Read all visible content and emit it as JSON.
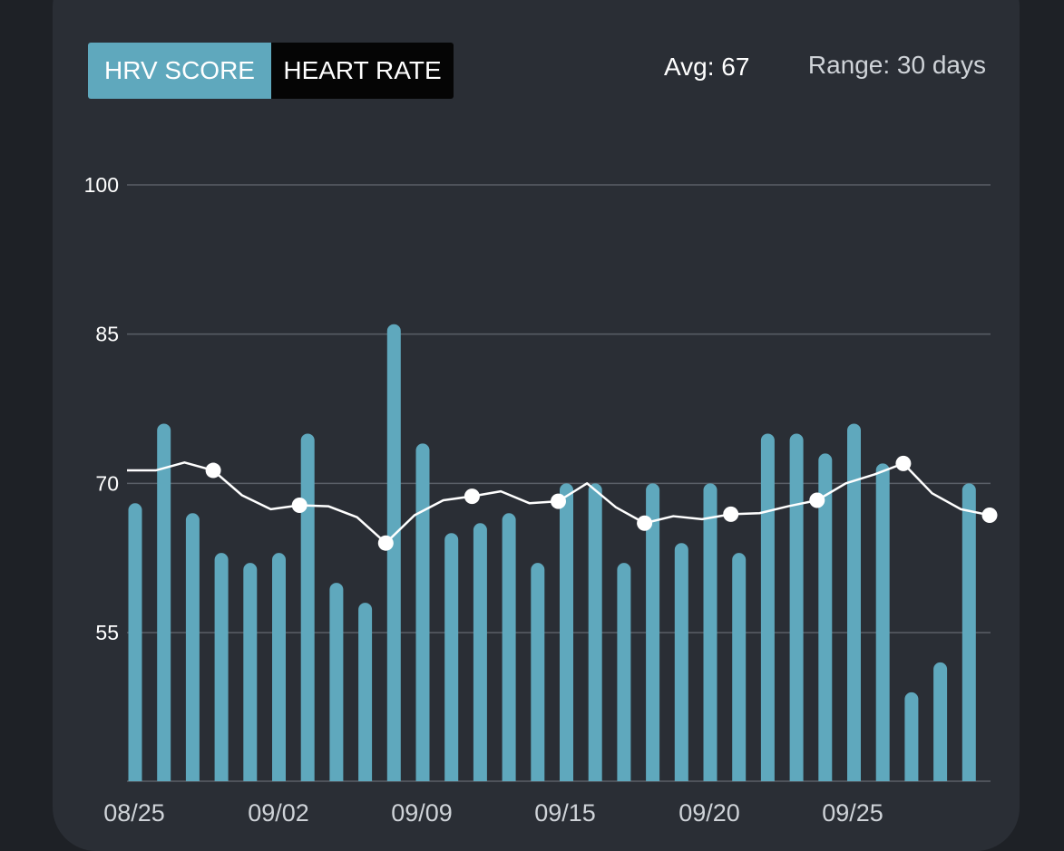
{
  "toggle": {
    "active_label": "HRV SCORE",
    "inactive_label": "HEART RATE"
  },
  "summary": {
    "avg": "Avg: 67",
    "range": "Range: 30 days"
  },
  "colors": {
    "bar": "#5fa8bd",
    "line": "#ffffff",
    "grid": "#5a5f67",
    "card": "#2a2e35",
    "background": "#1e2126"
  },
  "chart_data": {
    "type": "bar",
    "title": "",
    "xlabel": "",
    "ylabel": "",
    "ylim": [
      40,
      100
    ],
    "y_ticks": [
      100,
      85,
      70,
      55
    ],
    "grid": true,
    "x_tick_labels": [
      {
        "label": "08/25",
        "index": 0
      },
      {
        "label": "09/02",
        "index": 5
      },
      {
        "label": "09/09",
        "index": 10
      },
      {
        "label": "09/15",
        "index": 15
      },
      {
        "label": "09/20",
        "index": 20
      },
      {
        "label": "09/25",
        "index": 25
      }
    ],
    "values": [
      68,
      76,
      67,
      63,
      62,
      63,
      75,
      60,
      58,
      86,
      74,
      65,
      66,
      67,
      62,
      70,
      70,
      62,
      70,
      64,
      70,
      63,
      75,
      75,
      73,
      76,
      72,
      49,
      52,
      70
    ],
    "series": [
      {
        "type": "line",
        "values": [
          71.3,
          71.3,
          72.1,
          71.3,
          68.8,
          67.4,
          67.8,
          67.7,
          66.6,
          64.0,
          66.8,
          68.3,
          68.7,
          69.2,
          68.0,
          68.2,
          70.0,
          67.6,
          66.0,
          66.7,
          66.4,
          66.9,
          67.0,
          67.7,
          68.3,
          70.0,
          70.9,
          72.0,
          69.0,
          67.4,
          66.8
        ],
        "markers": [
          3,
          6,
          9,
          12,
          15,
          18,
          21,
          24,
          27,
          30
        ]
      }
    ]
  }
}
